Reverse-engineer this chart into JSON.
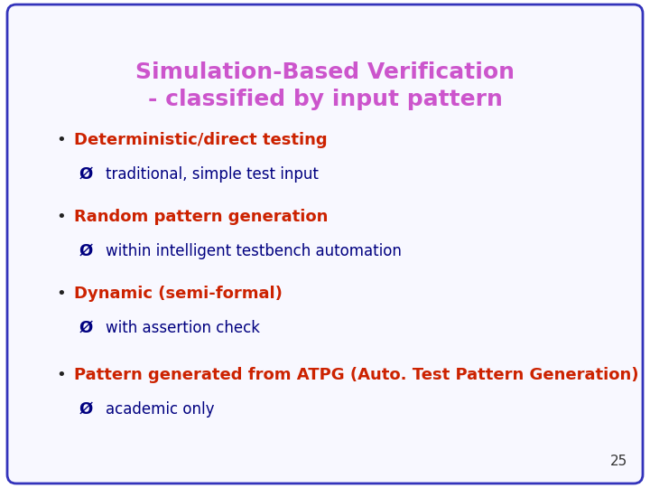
{
  "title_line1": "Simulation-Based Verification",
  "title_line2": "- classified by input pattern",
  "title_color": "#cc55cc",
  "background_color": "#f8f8ff",
  "border_color": "#3333bb",
  "slide_number": "25",
  "bullet_dot_color": "#222222",
  "bullet_items": [
    {
      "bullet": "Deterministic/direct testing",
      "bullet_color": "#cc2200",
      "sub": "traditional, simple test input",
      "sub_color": "#000080"
    },
    {
      "bullet": "Random pattern generation",
      "bullet_color": "#cc2200",
      "sub": "within intelligent testbench automation",
      "sub_color": "#000080"
    },
    {
      "bullet": "Dynamic (semi-formal)",
      "bullet_color": "#cc2200",
      "sub": "with assertion check",
      "sub_color": "#000080"
    },
    {
      "bullet": "Pattern generated from ATPG (Auto. Test Pattern Generation)",
      "bullet_color": "#cc2200",
      "sub": "academic only",
      "sub_color": "#000080"
    }
  ],
  "title_fontsize": 18,
  "bullet_fontsize": 13,
  "sub_fontsize": 12,
  "slide_num_fontsize": 11,
  "fig_width": 7.2,
  "fig_height": 5.4,
  "dpi": 100
}
